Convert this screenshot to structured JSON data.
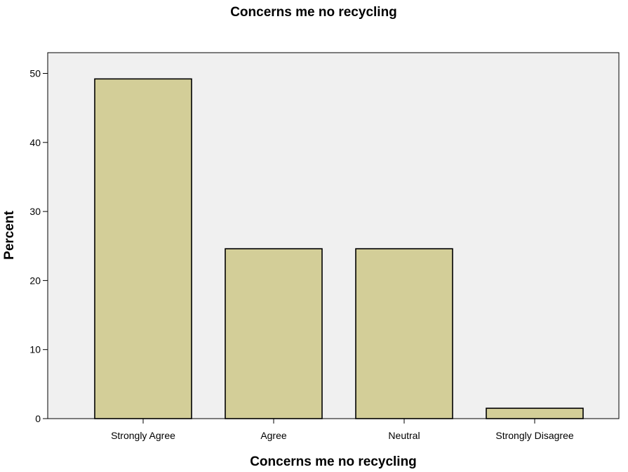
{
  "chart_data": {
    "type": "bar",
    "title": "Concerns me no recycling",
    "xlabel": "Concerns me no recycling",
    "ylabel": "Percent",
    "categories": [
      "Strongly Agree",
      "Agree",
      "Neutral",
      "Strongly Disagree"
    ],
    "values": [
      49.2,
      24.6,
      24.6,
      1.5
    ],
    "ylim": [
      0,
      53
    ],
    "yticks": [
      0,
      10,
      20,
      30,
      40,
      50
    ],
    "grid": false,
    "colors": {
      "bar_fill": "#d3ce98",
      "bar_stroke": "#000000",
      "plot_background": "#f0f0f0",
      "page_background": "#ffffff"
    }
  }
}
